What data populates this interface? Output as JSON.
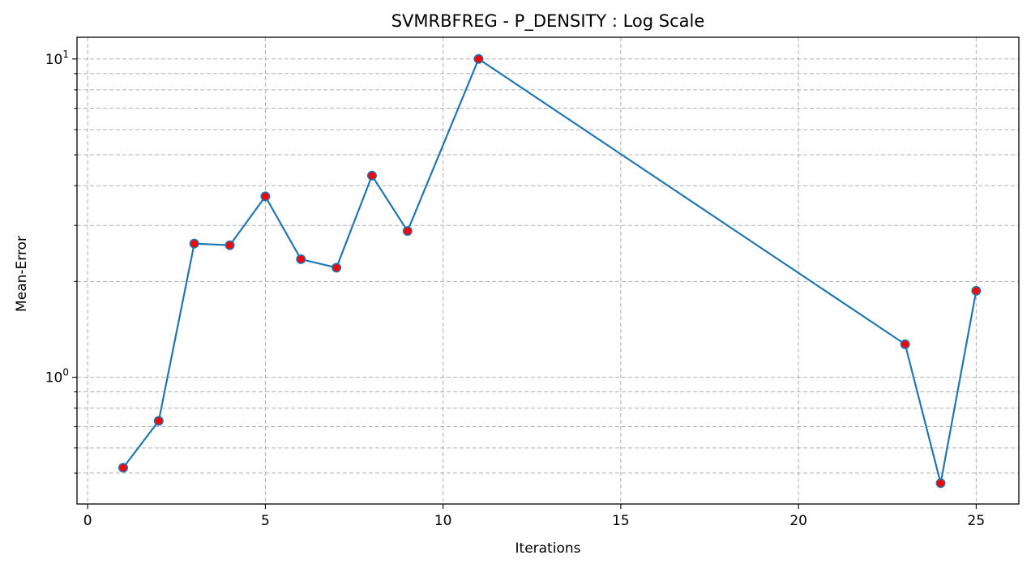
{
  "chart_data": {
    "type": "line",
    "title": "SVMRBFREG - P_DENSITY : Log Scale",
    "xlabel": "Iterations",
    "ylabel": "Mean-Error",
    "yscale": "log",
    "xlim": [
      -0.3,
      26.2
    ],
    "ylim": [
      0.4,
      11.7
    ],
    "grid": true,
    "x_ticks": [
      0,
      5,
      10,
      15,
      20,
      25
    ],
    "y_major_ticks": [
      1,
      10
    ],
    "y_major_tick_labels": [
      {
        "base": "10",
        "exp": "0"
      },
      {
        "base": "10",
        "exp": "1"
      }
    ],
    "y_minor_ticks": [
      0.5,
      0.6,
      0.7,
      0.8,
      0.9,
      2,
      3,
      4,
      5,
      6,
      7,
      8,
      9
    ],
    "colors": {
      "line": "#1f77b4",
      "marker_fill": "#ff0000",
      "grid": "#b0b0b0"
    },
    "series": [
      {
        "x": [
          1,
          2,
          3,
          4,
          5,
          6,
          7,
          8,
          9,
          11,
          23,
          24,
          25
        ],
        "values": [
          0.52,
          0.73,
          2.63,
          2.6,
          3.7,
          2.35,
          2.21,
          4.3,
          2.88,
          10.0,
          1.27,
          0.465,
          1.87
        ]
      }
    ]
  }
}
